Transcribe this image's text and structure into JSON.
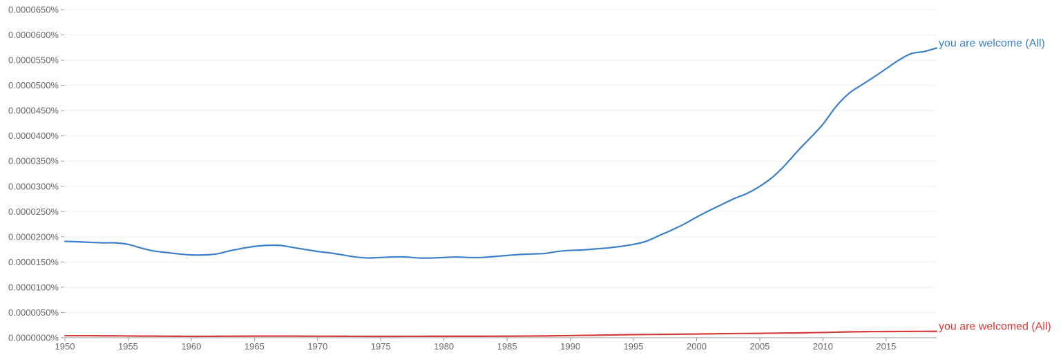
{
  "colors": {
    "gridline": "#eeeeee",
    "axis": "#999999",
    "tick_text": "#666666",
    "series_1": "#3b7fca",
    "series_2": "#d33b3b"
  },
  "chart_data": {
    "type": "line",
    "title": "",
    "xlabel": "",
    "ylabel": "",
    "xlim": [
      1950,
      2019
    ],
    "ylim": [
      0,
      6.5e-07
    ],
    "grid": true,
    "legend": "inline labels at right end of each line",
    "x_ticks": [
      "1950",
      "1955",
      "1960",
      "1965",
      "1970",
      "1975",
      "1980",
      "1985",
      "1990",
      "1995",
      "2000",
      "2005",
      "2010",
      "2015"
    ],
    "y_ticks": [
      "0.0000000%",
      "0.0000050%",
      "0.0000100%",
      "0.0000150%",
      "0.0000200%",
      "0.0000250%",
      "0.0000300%",
      "0.0000350%",
      "0.0000400%",
      "0.0000450%",
      "0.0000500%",
      "0.0000550%",
      "0.0000600%",
      "0.0000650%"
    ],
    "x": [
      1950,
      1951,
      1952,
      1953,
      1954,
      1955,
      1956,
      1957,
      1958,
      1959,
      1960,
      1961,
      1962,
      1963,
      1964,
      1965,
      1966,
      1967,
      1968,
      1969,
      1970,
      1971,
      1972,
      1973,
      1974,
      1975,
      1976,
      1977,
      1978,
      1979,
      1980,
      1981,
      1982,
      1983,
      1984,
      1985,
      1986,
      1987,
      1988,
      1989,
      1990,
      1991,
      1992,
      1993,
      1994,
      1995,
      1996,
      1997,
      1998,
      1999,
      2000,
      2001,
      2002,
      2003,
      2004,
      2005,
      2006,
      2007,
      2008,
      2009,
      2010,
      2011,
      2012,
      2013,
      2014,
      2015,
      2016,
      2017,
      2018,
      2019
    ],
    "series": [
      {
        "name": "you are welcome (All)",
        "values": [
          1.91e-07,
          1.9e-07,
          1.89e-07,
          1.88e-07,
          1.88e-07,
          1.85e-07,
          1.78e-07,
          1.72e-07,
          1.69e-07,
          1.66e-07,
          1.64e-07,
          1.64e-07,
          1.66e-07,
          1.72e-07,
          1.77e-07,
          1.81e-07,
          1.83e-07,
          1.83e-07,
          1.79e-07,
          1.75e-07,
          1.71e-07,
          1.68e-07,
          1.64e-07,
          1.6e-07,
          1.58e-07,
          1.59e-07,
          1.6e-07,
          1.6e-07,
          1.58e-07,
          1.58e-07,
          1.59e-07,
          1.6e-07,
          1.59e-07,
          1.59e-07,
          1.61e-07,
          1.63e-07,
          1.65e-07,
          1.66e-07,
          1.67e-07,
          1.71e-07,
          1.73e-07,
          1.74e-07,
          1.76e-07,
          1.78e-07,
          1.81e-07,
          1.85e-07,
          1.91e-07,
          2.02e-07,
          2.13e-07,
          2.25e-07,
          2.39e-07,
          2.52e-07,
          2.64e-07,
          2.76e-07,
          2.86e-07,
          3e-07,
          3.18e-07,
          3.42e-07,
          3.7e-07,
          3.96e-07,
          4.23e-07,
          4.57e-07,
          4.83e-07,
          5e-07,
          5.16e-07,
          5.33e-07,
          5.5e-07,
          5.63e-07,
          5.67e-07,
          5.74e-07
        ]
      },
      {
        "name": "you are welcomed (All)",
        "values": [
          4e-09,
          4e-09,
          4e-09,
          3.8e-09,
          3.8e-09,
          3.5e-09,
          3.3e-09,
          3.2e-09,
          3e-09,
          2.9e-09,
          2.8e-09,
          2.8e-09,
          2.9e-09,
          3e-09,
          3.1e-09,
          3.2e-09,
          3.3e-09,
          3.3e-09,
          3.2e-09,
          3.1e-09,
          3e-09,
          3e-09,
          2.9e-09,
          2.8e-09,
          2.7e-09,
          2.7e-09,
          2.7e-09,
          2.8e-09,
          2.8e-09,
          2.9e-09,
          2.9e-09,
          2.9e-09,
          2.9e-09,
          2.9e-09,
          3e-09,
          3.1e-09,
          3.2e-09,
          3.4e-09,
          3.6e-09,
          3.9e-09,
          4.2e-09,
          4.6e-09,
          5e-09,
          5.4e-09,
          5.8e-09,
          6.2e-09,
          6.4e-09,
          6.6e-09,
          6.8e-09,
          7.1e-09,
          7.4e-09,
          7.7e-09,
          8e-09,
          8.3e-09,
          8.5e-09,
          8.7e-09,
          9e-09,
          9.3e-09,
          9.6e-09,
          1e-08,
          1.04e-08,
          1.1e-08,
          1.16e-08,
          1.2e-08,
          1.22e-08,
          1.23e-08,
          1.24e-08,
          1.25e-08,
          1.26e-08,
          1.27e-08
        ]
      }
    ]
  }
}
